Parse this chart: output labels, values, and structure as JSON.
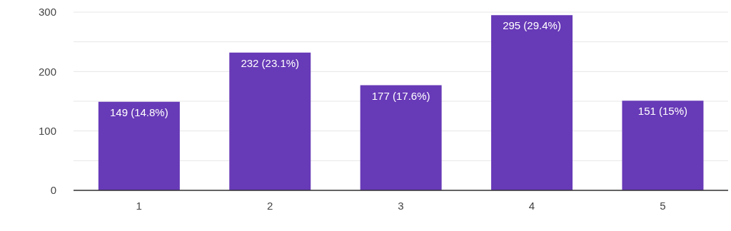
{
  "chart_data": {
    "type": "bar",
    "categories": [
      "1",
      "2",
      "3",
      "4",
      "5"
    ],
    "values": [
      149,
      232,
      177,
      295,
      151
    ],
    "color": "#673ab7",
    "value_labels": [
      "149 (14.8%)",
      "232 (23.1%)",
      "177 (17.6%)",
      "295 (29.4%)",
      "151 (15%)"
    ],
    "ylim": [
      0,
      300
    ],
    "yticks": [
      0,
      {
        "value": 50,
        "label": null
      },
      100,
      {
        "value": 150,
        "label": null
      },
      200,
      {
        "value": 250,
        "label": null
      },
      300
    ],
    "grid": "y",
    "legend": false
  }
}
